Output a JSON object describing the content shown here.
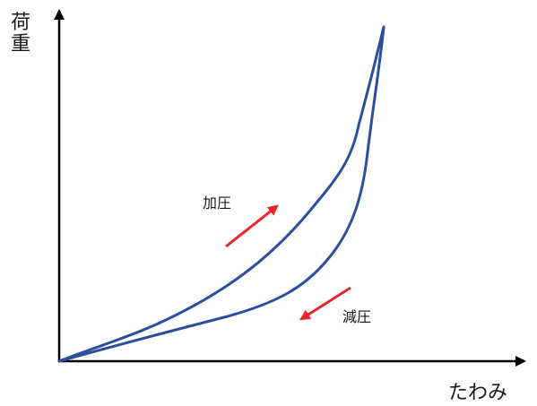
{
  "y_axis": {
    "label_chars": [
      "荷",
      "重"
    ]
  },
  "x_axis": {
    "label": "たわみ"
  },
  "annotations": {
    "loading": "加圧",
    "unloading": "減圧"
  },
  "colors": {
    "axis": "#000000",
    "curve": "#2b4f9e",
    "arrow": "#e8262b"
  }
}
